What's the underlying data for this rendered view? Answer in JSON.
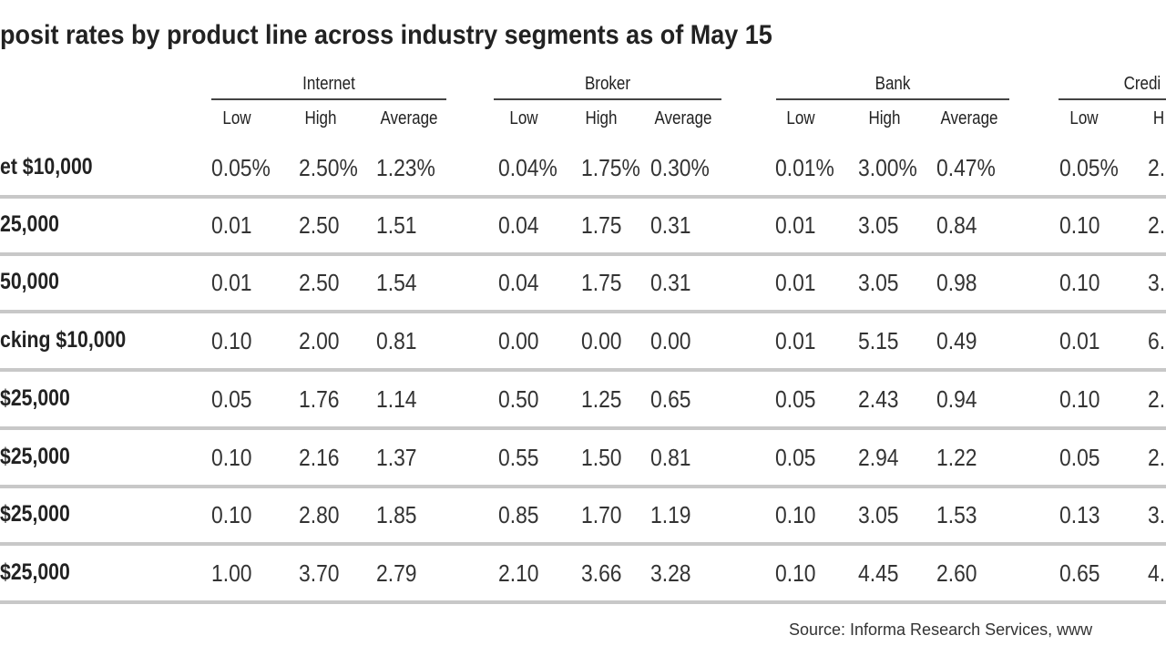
{
  "title": "posit rates by product line across industry segments as of May 15",
  "groups": [
    {
      "label": "Internet",
      "columns": [
        "Low",
        "High",
        "Average"
      ]
    },
    {
      "label": "Broker",
      "columns": [
        "Low",
        "High",
        "Average"
      ]
    },
    {
      "label": "Bank",
      "columns": [
        "Low",
        "High",
        "Average"
      ]
    },
    {
      "label": "Credi",
      "columns": [
        "Low",
        "H"
      ]
    }
  ],
  "rows": [
    {
      "label": "et $10,000",
      "cells": [
        "0.05%",
        "2.50%",
        "1.23%",
        "0.04%",
        "1.75%",
        "0.30%",
        "0.01%",
        "3.00%",
        "0.47%",
        "0.05%",
        "2."
      ]
    },
    {
      "label": "25,000",
      "cells": [
        "0.01",
        "2.50",
        "1.51",
        "0.04",
        "1.75",
        "0.31",
        "0.01",
        "3.05",
        "0.84",
        "0.10",
        "2."
      ]
    },
    {
      "label": "50,000",
      "cells": [
        "0.01",
        "2.50",
        "1.54",
        "0.04",
        "1.75",
        "0.31",
        "0.01",
        "3.05",
        "0.98",
        "0.10",
        "3."
      ]
    },
    {
      "label": "cking $10,000",
      "cells": [
        "0.10",
        "2.00",
        "0.81",
        "0.00",
        "0.00",
        "0.00",
        "0.01",
        "5.15",
        "0.49",
        "0.01",
        "6."
      ]
    },
    {
      "label": "$25,000",
      "cells": [
        "0.05",
        "1.76",
        "1.14",
        "0.50",
        "1.25",
        "0.65",
        "0.05",
        "2.43",
        "0.94",
        "0.10",
        "2."
      ]
    },
    {
      "label": "$25,000",
      "cells": [
        "0.10",
        "2.16",
        "1.37",
        "0.55",
        "1.50",
        "0.81",
        "0.05",
        "2.94",
        "1.22",
        "0.05",
        "2."
      ]
    },
    {
      "label": "$25,000",
      "cells": [
        "0.10",
        "2.80",
        "1.85",
        "0.85",
        "1.70",
        "1.19",
        "0.10",
        "3.05",
        "1.53",
        "0.13",
        "3."
      ]
    },
    {
      "label": "$25,000",
      "cells": [
        "1.00",
        "3.70",
        "2.79",
        "2.10",
        "3.66",
        "3.28",
        "0.10",
        "4.45",
        "2.60",
        "0.65",
        "4."
      ]
    }
  ],
  "source": "Source: Informa Research Services, www"
}
